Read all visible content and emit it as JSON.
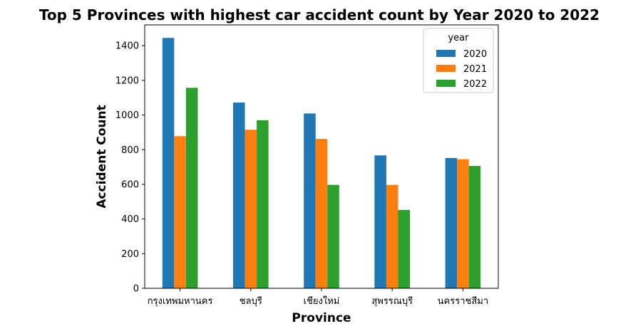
{
  "chart_data": {
    "type": "bar",
    "title": "Top 5 Provinces with highest car accident count by Year 2020 to 2022",
    "xlabel": "Province",
    "ylabel": "Accident Count",
    "categories": [
      "กรุงเทพมหานคร",
      "ชลบุรี",
      "เชียงใหม่",
      "สุพรรณบุรี",
      "นครราชสีมา"
    ],
    "series": [
      {
        "name": "2020",
        "color": "#1f77b4",
        "values": [
          1445,
          1072,
          1009,
          767,
          752
        ]
      },
      {
        "name": "2021",
        "color": "#ff7f0e",
        "values": [
          878,
          915,
          862,
          597,
          745
        ]
      },
      {
        "name": "2022",
        "color": "#2ca02c",
        "values": [
          1157,
          970,
          597,
          452,
          706
        ]
      }
    ],
    "ylim": [
      0,
      1520
    ],
    "yticks": [
      0,
      200,
      400,
      600,
      800,
      1000,
      1200,
      1400
    ],
    "grid": false,
    "legend": {
      "title": "year",
      "placement": "top-right"
    }
  }
}
